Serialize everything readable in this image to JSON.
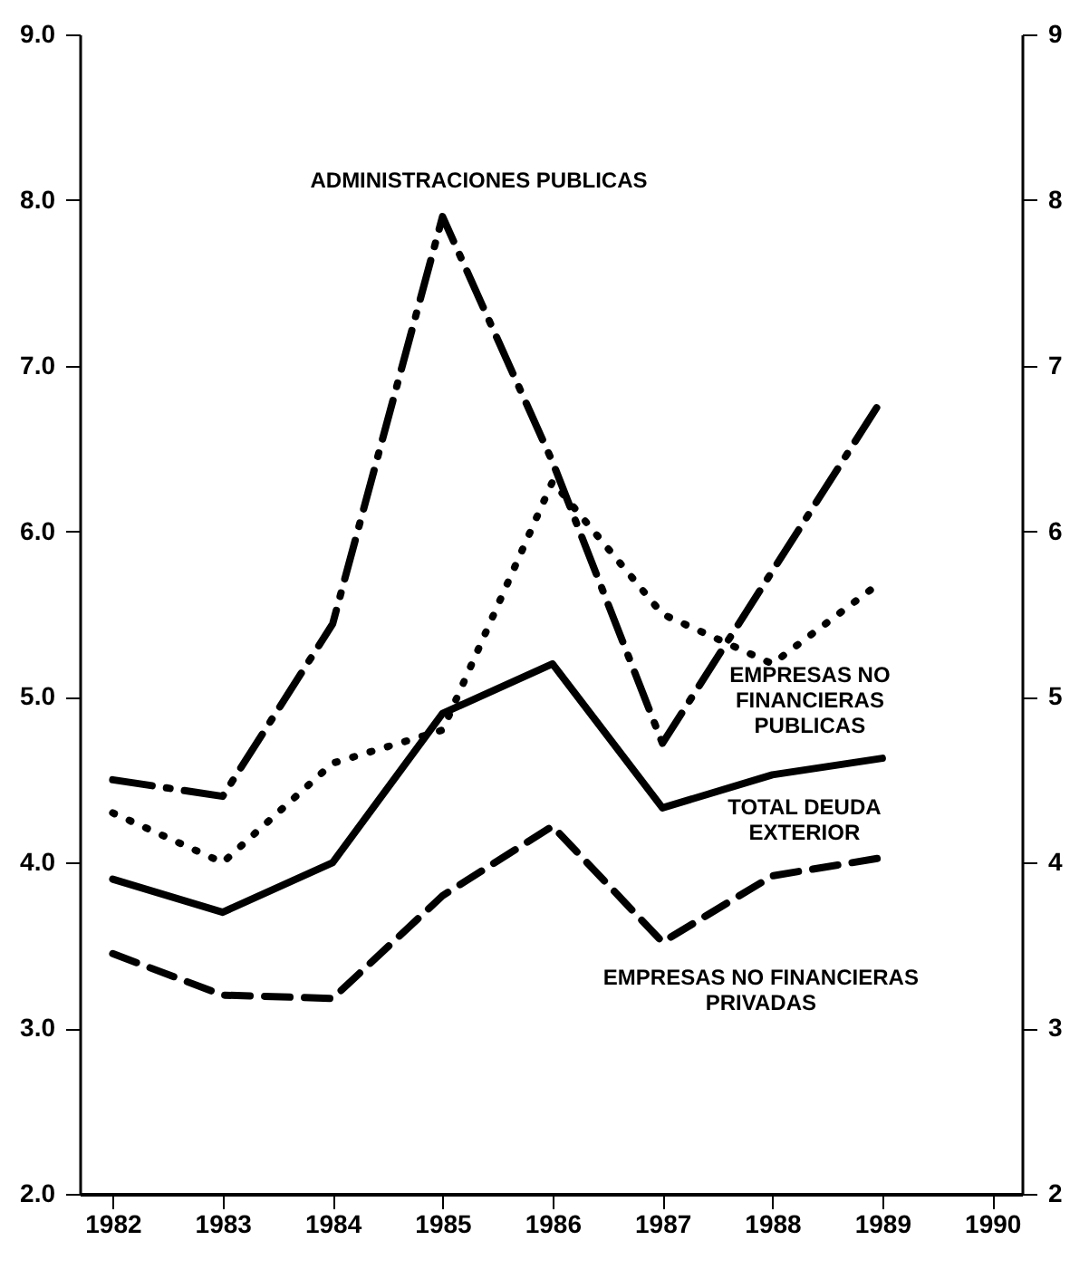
{
  "chart_data": {
    "type": "line",
    "x": [
      1982,
      1983,
      1984,
      1985,
      1986,
      1987,
      1988,
      1989
    ],
    "xlim": [
      1981.7,
      1990.27
    ],
    "xticks": [
      1982,
      1983,
      1984,
      1985,
      1986,
      1987,
      1988,
      1989,
      1990
    ],
    "ylim": [
      2,
      9
    ],
    "yticks": [
      {
        "value": 2,
        "label": "2.0"
      },
      {
        "value": 3,
        "label": "3.0"
      },
      {
        "value": 4,
        "label": "4.0"
      },
      {
        "value": 5,
        "label": "5.0"
      },
      {
        "value": 6,
        "label": "6.0"
      },
      {
        "value": 7,
        "label": "7.0"
      },
      {
        "value": 8,
        "label": "8.0"
      },
      {
        "value": 9,
        "label": "9.0"
      }
    ],
    "y2lim": [
      2,
      9
    ],
    "y2ticks": [
      2,
      3,
      4,
      5,
      6,
      7,
      8,
      9
    ],
    "grid": false,
    "marker": "none",
    "series": [
      {
        "name": "ADMINISTRACIONES PUBLICAS",
        "color": "#000000",
        "line_style": "dashdot",
        "values": [
          4.5,
          4.4,
          5.44,
          7.9,
          6.42,
          4.72,
          5.76,
          6.8
        ]
      },
      {
        "name": "EMPRESAS NO\nFINANCIERAS\nPUBLICAS",
        "color": "#000000",
        "line_style": "dotted",
        "values": [
          4.3,
          4.0,
          4.6,
          4.8,
          6.3,
          5.5,
          5.2,
          5.7
        ]
      },
      {
        "name": "TOTAL DEUDA\nEXTERIOR",
        "color": "#000000",
        "line_style": "solid",
        "values": [
          3.9,
          3.7,
          4.0,
          4.9,
          5.2,
          4.33,
          4.53,
          4.63
        ]
      },
      {
        "name": "EMPRESAS NO FINANCIERAS\nPRIVADAS",
        "color": "#000000",
        "line_style": "dashed",
        "values": [
          3.45,
          3.2,
          3.18,
          3.8,
          4.22,
          3.52,
          3.92,
          4.03
        ]
      }
    ]
  }
}
